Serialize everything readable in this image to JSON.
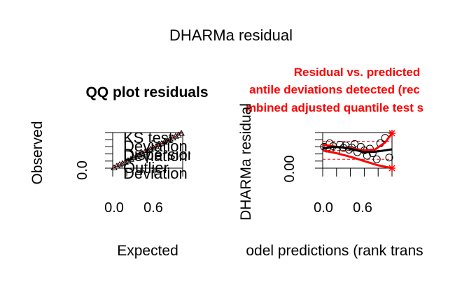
{
  "title": "DHARMa residual",
  "chart_data": [
    {
      "type": "scatter",
      "title": "QQ plot residuals",
      "xlabel": "Expected",
      "ylabel": "Observed",
      "x_ticks": [
        "0.0",
        "0.6"
      ],
      "y_ticks": [
        "0.0"
      ],
      "xlim": [
        0,
        1
      ],
      "ylim": [
        0,
        1
      ],
      "legend_placement": "top-left",
      "legend": [
        "KS test",
        "Deviation",
        "Dispersion",
        "Deviation",
        "Outlier",
        "Deviation"
      ],
      "series": [
        {
          "x": [
            0.02,
            0.06,
            0.1,
            0.14,
            0.18,
            0.22,
            0.26,
            0.3,
            0.34,
            0.38,
            0.42,
            0.46,
            0.5,
            0.54,
            0.58,
            0.62,
            0.66,
            0.7,
            0.74,
            0.78,
            0.82,
            0.86,
            0.9,
            0.94,
            0.98
          ],
          "y": [
            0.01,
            0.06,
            0.1,
            0.13,
            0.17,
            0.21,
            0.25,
            0.3,
            0.33,
            0.37,
            0.42,
            0.45,
            0.5,
            0.53,
            0.57,
            0.61,
            0.66,
            0.69,
            0.73,
            0.78,
            0.82,
            0.85,
            0.9,
            0.93,
            0.98
          ]
        }
      ]
    },
    {
      "type": "scatter",
      "title": "Residual vs. predicted",
      "subtitles": [
        "antile deviations detected (rec",
        "mbined adjusted quantile test s"
      ],
      "xlabel": "odel predictions (rank trans",
      "ylabel": "DHARMa residual",
      "x_ticks": [
        "0.0",
        "0.6"
      ],
      "y_ticks": [
        "0.00"
      ],
      "xlim": [
        0,
        1
      ],
      "ylim": [
        0,
        1
      ],
      "points": {
        "x": [
          0.02,
          0.06,
          0.1,
          0.15,
          0.2,
          0.25,
          0.3,
          0.33,
          0.38,
          0.42,
          0.46,
          0.5,
          0.55,
          0.6,
          0.64,
          0.68,
          0.72,
          0.78,
          0.83,
          0.9,
          0.96
        ],
        "y": [
          0.6,
          0.55,
          0.7,
          0.62,
          0.5,
          0.66,
          0.57,
          0.64,
          0.52,
          0.58,
          0.68,
          0.45,
          0.6,
          0.5,
          0.35,
          0.55,
          0.42,
          0.25,
          0.7,
          0.85,
          0.3
        ]
      },
      "quantile_lines": [
        0.25,
        0.5,
        0.75
      ],
      "spline_median": {
        "x": [
          0.0,
          0.15,
          0.3,
          0.45,
          0.6,
          0.75,
          0.9,
          1.0
        ],
        "y": [
          0.55,
          0.6,
          0.58,
          0.52,
          0.45,
          0.46,
          0.5,
          0.53
        ]
      },
      "spline_upper": {
        "x": [
          0.0,
          0.2,
          0.4,
          0.6,
          0.75,
          0.9,
          1.0
        ],
        "y": [
          0.66,
          0.6,
          0.56,
          0.5,
          0.52,
          0.72,
          0.98
        ]
      },
      "spline_lower": {
        "x": [
          0.0,
          0.2,
          0.4,
          0.6,
          0.8,
          1.0
        ],
        "y": [
          0.5,
          0.42,
          0.32,
          0.2,
          0.08,
          0.0
        ]
      }
    }
  ]
}
